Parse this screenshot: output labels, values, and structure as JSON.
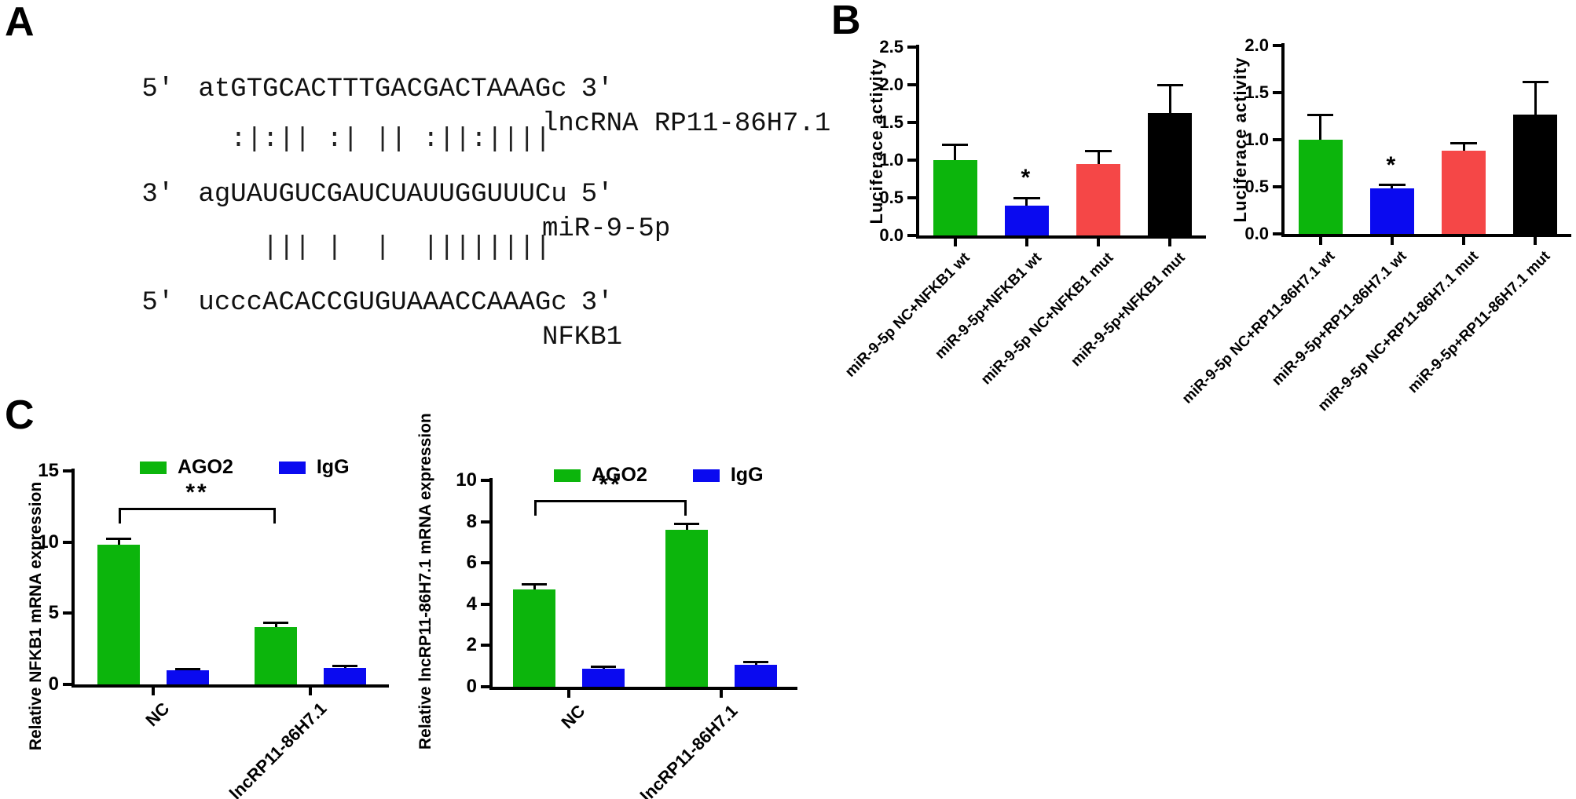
{
  "panels": {
    "a_label": "A",
    "b_label": "B",
    "c_label": "C"
  },
  "panel_a": {
    "sequences": [
      {
        "prefix": "5'",
        "seq": "atGTGCACTTTGACGACTAAAGc",
        "suffix": "3'",
        "label": "lncRNA RP11-86H7.1"
      },
      {
        "prefix": "3'",
        "seq": "agUAUGUCGAUCUAUUGGUUUCu",
        "suffix": "5'",
        "label": "miR-9-5p"
      },
      {
        "prefix": "5'",
        "seq": "ucccACACCGUGUAAACCAAAGc",
        "suffix": "3'",
        "label": "NFKB1"
      }
    ],
    "pairings": [
      "  :|:|| :| || :||:||||",
      "    ||| |  |  ||||||||"
    ]
  },
  "colors": {
    "green": "#0cb50c",
    "blue": "#0a0af0",
    "red": "#f54747",
    "black": "#000000"
  },
  "chart_data": [
    {
      "id": "b_left",
      "type": "bar",
      "title": "",
      "xlabel": "",
      "ylabel": "Luciferace activity",
      "ylim": [
        0,
        2.5
      ],
      "yticks": [
        0,
        0.5,
        1.0,
        1.5,
        2.0,
        2.5
      ],
      "ytick_labels": [
        "0.0",
        "0.5",
        "1.0",
        "1.5",
        "2.0",
        "2.5"
      ],
      "categories": [
        "miR-9-5p NC+NFKB1 wt",
        "miR-9-5p+NFKB1 wt",
        "miR-9-5p NC+NFKB1 mut",
        "miR-9-5p+NFKB1 mut"
      ],
      "values": [
        1.0,
        0.4,
        0.95,
        1.62
      ],
      "errors": [
        0.2,
        0.1,
        0.17,
        0.38
      ],
      "bar_colors": [
        "#0cb50c",
        "#0a0af0",
        "#f54747",
        "#000000"
      ],
      "annotations": [
        {
          "bar": 1,
          "text": "*"
        }
      ]
    },
    {
      "id": "b_right",
      "type": "bar",
      "title": "",
      "xlabel": "",
      "ylabel": "Luciferace activity",
      "ylim": [
        0,
        2.0
      ],
      "yticks": [
        0,
        0.5,
        1.0,
        1.5,
        2.0
      ],
      "ytick_labels": [
        "0.0",
        "0.5",
        "1.0",
        "1.5",
        "2.0"
      ],
      "categories": [
        "miR-9-5p NC+RP11-86H7.1 wt",
        "miR-9-5p+RP11-86H7.1 wt",
        "miR-9-5p NC+RP11-86H7.1 mut",
        "miR-9-5p+RP11-86H7.1 mut"
      ],
      "values": [
        1.0,
        0.48,
        0.88,
        1.27
      ],
      "errors": [
        0.26,
        0.04,
        0.08,
        0.34
      ],
      "bar_colors": [
        "#0cb50c",
        "#0a0af0",
        "#f54747",
        "#000000"
      ],
      "annotations": [
        {
          "bar": 1,
          "text": "*"
        }
      ]
    },
    {
      "id": "c_left",
      "type": "grouped_bar",
      "title": "",
      "xlabel": "",
      "ylabel": "Relative NFKB1 mRNA expression",
      "ylim": [
        0,
        15
      ],
      "yticks": [
        0,
        5,
        10,
        15
      ],
      "ytick_labels": [
        "0",
        "5",
        "10",
        "15"
      ],
      "categories": [
        "NC",
        "lncRP11-86H7.1"
      ],
      "series": [
        {
          "name": "AGO2",
          "color": "#0cb50c",
          "values": [
            9.8,
            4.0
          ],
          "errors": [
            0.45,
            0.35
          ]
        },
        {
          "name": "IgG",
          "color": "#0a0af0",
          "values": [
            1.0,
            1.15
          ],
          "errors": [
            0.1,
            0.13
          ]
        }
      ],
      "legend": [
        "AGO2",
        "IgG"
      ],
      "bracket": {
        "text": "**",
        "y": 12.4,
        "from": {
          "group": 0,
          "series": 0
        },
        "to": {
          "group": 1,
          "series": 0
        }
      }
    },
    {
      "id": "c_right",
      "type": "grouped_bar",
      "title": "",
      "xlabel": "",
      "ylabel": "Relative lncRP11-86H7.1 mRNA expression",
      "ylim": [
        0,
        10
      ],
      "yticks": [
        0,
        2,
        4,
        6,
        8,
        10
      ],
      "ytick_labels": [
        "0",
        "2",
        "4",
        "6",
        "8",
        "10"
      ],
      "categories": [
        "NC",
        "lncRP11-86H7.1"
      ],
      "series": [
        {
          "name": "AGO2",
          "color": "#0cb50c",
          "values": [
            4.7,
            7.6
          ],
          "errors": [
            0.25,
            0.3
          ]
        },
        {
          "name": "IgG",
          "color": "#0a0af0",
          "values": [
            0.86,
            1.05
          ],
          "errors": [
            0.12,
            0.15
          ]
        }
      ],
      "legend": [
        "AGO2",
        "IgG"
      ],
      "bracket": {
        "text": "**",
        "y": 9.05,
        "from": {
          "group": 0,
          "series": 0
        },
        "to": {
          "group": 1,
          "series": 0
        }
      }
    }
  ]
}
